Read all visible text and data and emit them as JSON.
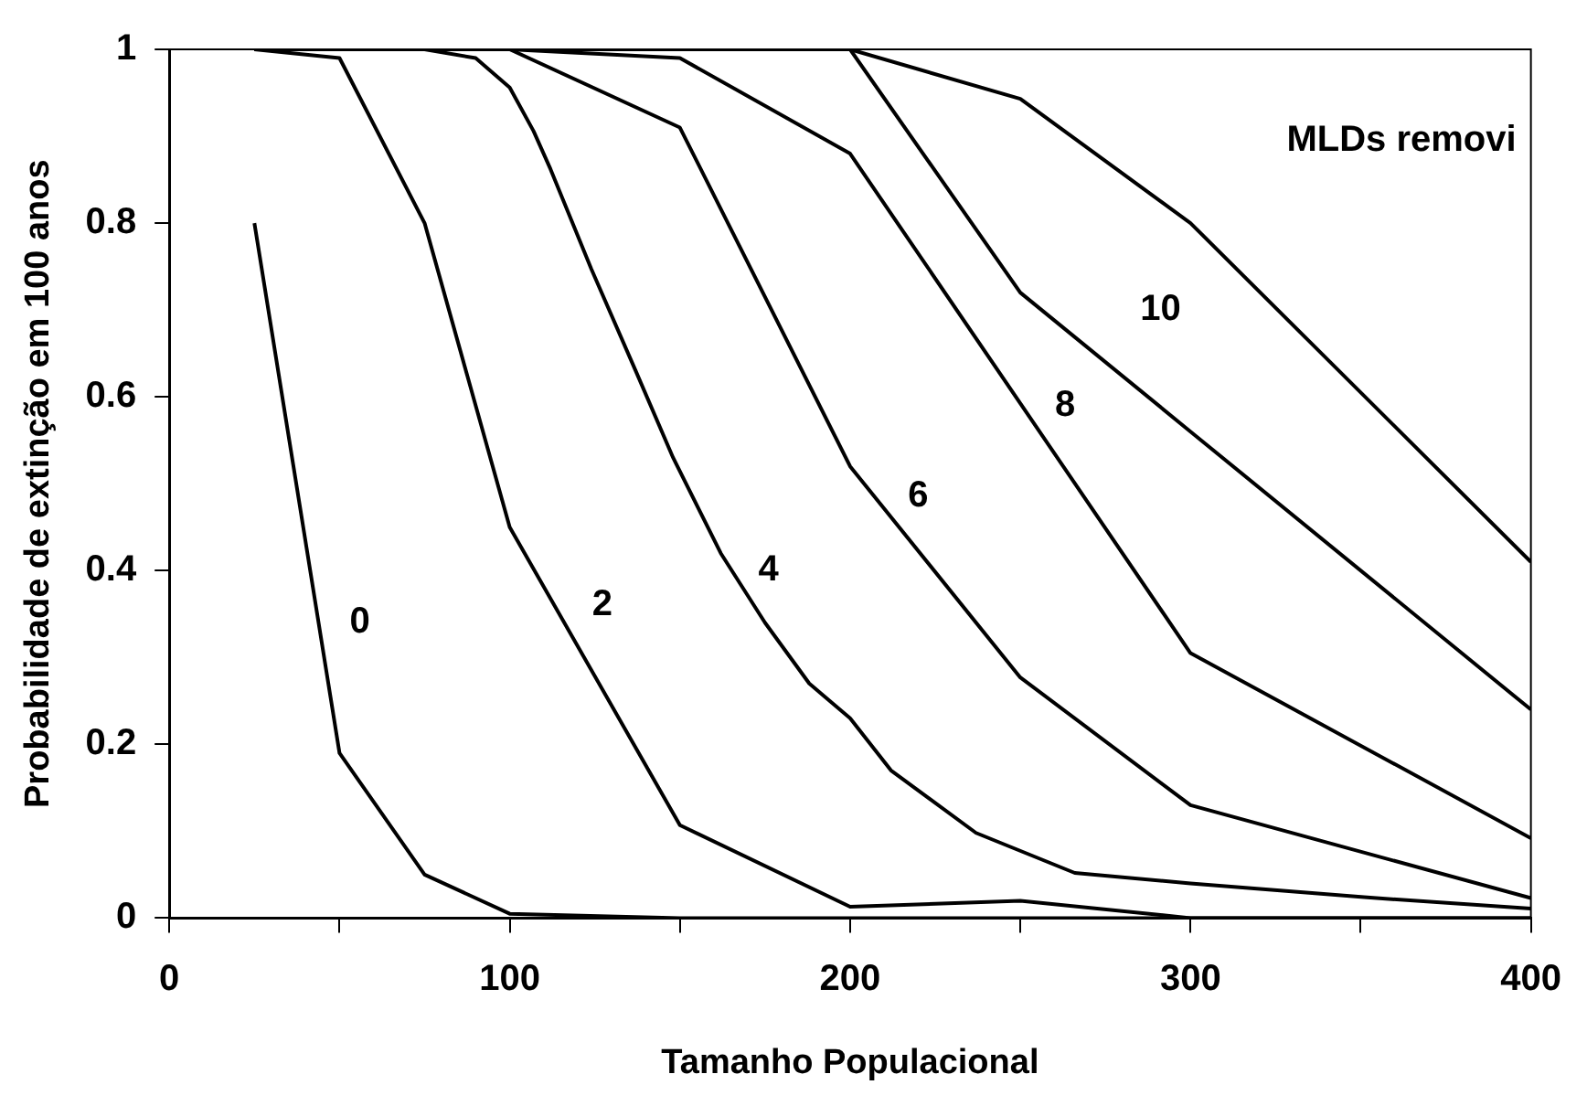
{
  "chart_data": {
    "type": "line",
    "xlabel": "Tamanho Populacional",
    "ylabel": "Probabilidade de extinção em 100 anos",
    "xlim": [
      0,
      400
    ],
    "xticks": [
      0,
      {
        "value": 50,
        "label": null
      },
      100,
      {
        "value": 150,
        "label": null
      },
      200,
      {
        "value": 250,
        "label": null
      },
      300,
      {
        "value": 350,
        "label": null
      },
      400
    ],
    "ylim": [
      0,
      1
    ],
    "yticks": [
      0,
      0.2,
      0.4,
      0.6,
      0.8,
      1
    ],
    "grid": false,
    "legend": false,
    "series": [
      {
        "name": "0",
        "color": "#000000",
        "x": [
          25,
          50,
          75,
          100,
          150,
          200,
          250,
          300,
          400
        ],
        "values": [
          0.8,
          0.19,
          0.05,
          0.005,
          0,
          0,
          0,
          0,
          0
        ]
      },
      {
        "name": "2",
        "color": "#000000",
        "x": [
          25,
          50,
          75,
          100,
          150,
          200,
          250,
          300,
          400
        ],
        "values": [
          1,
          0.99,
          0.8,
          0.45,
          0.107,
          0.013,
          0.02,
          0,
          0
        ]
      },
      {
        "name": "4",
        "color": "#000000",
        "x": [
          25,
          50,
          75,
          90,
          100,
          107,
          112,
          124,
          137,
          148,
          162,
          175,
          188,
          200,
          212,
          237,
          266,
          300,
          351,
          400
        ],
        "values": [
          1,
          1,
          1,
          0.99,
          0.956,
          0.906,
          0.862,
          0.747,
          0.63,
          0.53,
          0.42,
          0.34,
          0.27,
          0.23,
          0.17,
          0.098,
          0.052,
          0.04,
          0.024,
          0.011
        ]
      },
      {
        "name": "6",
        "color": "#000000",
        "x": [
          25,
          50,
          75,
          100,
          150,
          200,
          250,
          300,
          400
        ],
        "values": [
          1,
          1,
          1,
          1,
          0.91,
          0.52,
          0.277,
          0.13,
          0.023
        ]
      },
      {
        "name": "8",
        "color": "#000000",
        "x": [
          25,
          50,
          75,
          100,
          150,
          200,
          300,
          400
        ],
        "values": [
          1,
          1,
          1,
          1,
          0.99,
          0.88,
          0.305,
          0.092
        ]
      },
      {
        "name": "10",
        "color": "#000000",
        "x": [
          25,
          50,
          75,
          100,
          150,
          200,
          250,
          300,
          400
        ],
        "values": [
          1,
          1,
          1,
          1,
          1,
          1,
          0.72,
          0.56,
          0.24
        ]
      },
      {
        "color": "#000000",
        "x": [
          25,
          50,
          75,
          100,
          150,
          200,
          250,
          300,
          400
        ],
        "values": [
          1,
          1,
          1,
          1,
          1,
          1,
          0.943,
          0.8,
          0.41
        ]
      }
    ],
    "annotations": [
      "MLDs removi"
    ]
  }
}
